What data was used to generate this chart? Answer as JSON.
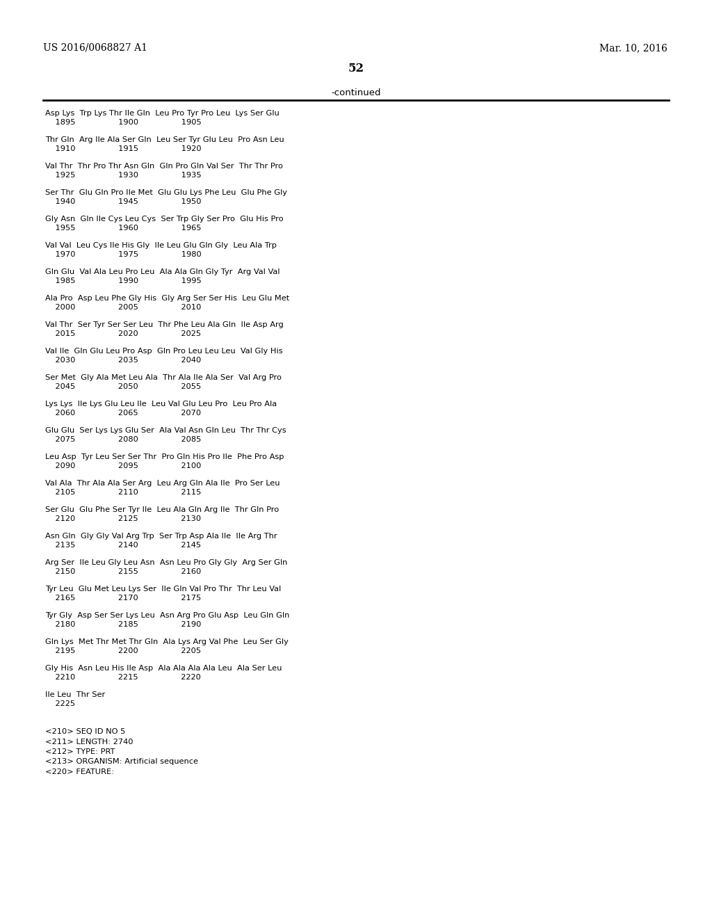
{
  "header_left": "US 2016/0068827 A1",
  "header_right": "Mar. 10, 2016",
  "page_number": "52",
  "continued_label": "-continued",
  "background_color": "#ffffff",
  "text_color": "#000000",
  "seq_pairs": [
    [
      "Asp Lys  Trp Lys Thr Ile Gln  Leu Pro Tyr Pro Leu  Lys Ser Glu",
      "    1895                 1900                 1905"
    ],
    [
      "Thr Gln  Arg Ile Ala Ser Gln  Leu Ser Tyr Glu Leu  Pro Asn Leu",
      "    1910                 1915                 1920"
    ],
    [
      "Val Thr  Thr Pro Thr Asn Gln  Gln Pro Gln Val Ser  Thr Thr Pro",
      "    1925                 1930                 1935"
    ],
    [
      "Ser Thr  Glu Gln Pro Ile Met  Glu Glu Lys Phe Leu  Glu Phe Gly",
      "    1940                 1945                 1950"
    ],
    [
      "Gly Asn  Gln Ile Cys Leu Cys  Ser Trp Gly Ser Pro  Glu His Pro",
      "    1955                 1960                 1965"
    ],
    [
      "Val Val  Leu Cys Ile His Gly  Ile Leu Glu Gln Gly  Leu Ala Trp",
      "    1970                 1975                 1980"
    ],
    [
      "Gln Glu  Val Ala Leu Pro Leu  Ala Ala Gln Gly Tyr  Arg Val Val",
      "    1985                 1990                 1995"
    ],
    [
      "Ala Pro  Asp Leu Phe Gly His  Gly Arg Ser Ser His  Leu Glu Met",
      "    2000                 2005                 2010"
    ],
    [
      "Val Thr  Ser Tyr Ser Ser Leu  Thr Phe Leu Ala Gln  Ile Asp Arg",
      "    2015                 2020                 2025"
    ],
    [
      "Val Ile  Gln Glu Leu Pro Asp  Gln Pro Leu Leu Leu  Val Gly His",
      "    2030                 2035                 2040"
    ],
    [
      "Ser Met  Gly Ala Met Leu Ala  Thr Ala Ile Ala Ser  Val Arg Pro",
      "    2045                 2050                 2055"
    ],
    [
      "Lys Lys  Ile Lys Glu Leu Ile  Leu Val Glu Leu Pro  Leu Pro Ala",
      "    2060                 2065                 2070"
    ],
    [
      "Glu Glu  Ser Lys Lys Glu Ser  Ala Val Asn Gln Leu  Thr Thr Cys",
      "    2075                 2080                 2085"
    ],
    [
      "Leu Asp  Tyr Leu Ser Ser Thr  Pro Gln His Pro Ile  Phe Pro Asp",
      "    2090                 2095                 2100"
    ],
    [
      "Val Ala  Thr Ala Ala Ser Arg  Leu Arg Gln Ala Ile  Pro Ser Leu",
      "    2105                 2110                 2115"
    ],
    [
      "Ser Glu  Glu Phe Ser Tyr Ile  Leu Ala Gln Arg Ile  Thr Gln Pro",
      "    2120                 2125                 2130"
    ],
    [
      "Asn Gln  Gly Gly Val Arg Trp  Ser Trp Asp Ala Ile  Ile Arg Thr",
      "    2135                 2140                 2145"
    ],
    [
      "Arg Ser  Ile Leu Gly Leu Asn  Asn Leu Pro Gly Gly  Arg Ser Gln",
      "    2150                 2155                 2160"
    ],
    [
      "Tyr Leu  Glu Met Leu Lys Ser  Ile Gln Val Pro Thr  Thr Leu Val",
      "    2165                 2170                 2175"
    ],
    [
      "Tyr Gly  Asp Ser Ser Lys Leu  Asn Arg Pro Glu Asp  Leu Gln Gln",
      "    2180                 2185                 2190"
    ],
    [
      "Gln Lys  Met Thr Met Thr Gln  Ala Lys Arg Val Phe  Leu Ser Gly",
      "    2195                 2200                 2205"
    ],
    [
      "Gly His  Asn Leu His Ile Asp  Ala Ala Ala Ala Leu  Ala Ser Leu",
      "    2210                 2215                 2220"
    ],
    [
      "Ile Leu  Thr Ser",
      "    2225"
    ]
  ],
  "footer_lines": [
    "<210> SEQ ID NO 5",
    "<211> LENGTH: 2740",
    "<212> TYPE: PRT",
    "<213> ORGANISM: Artificial sequence",
    "<220> FEATURE:"
  ]
}
